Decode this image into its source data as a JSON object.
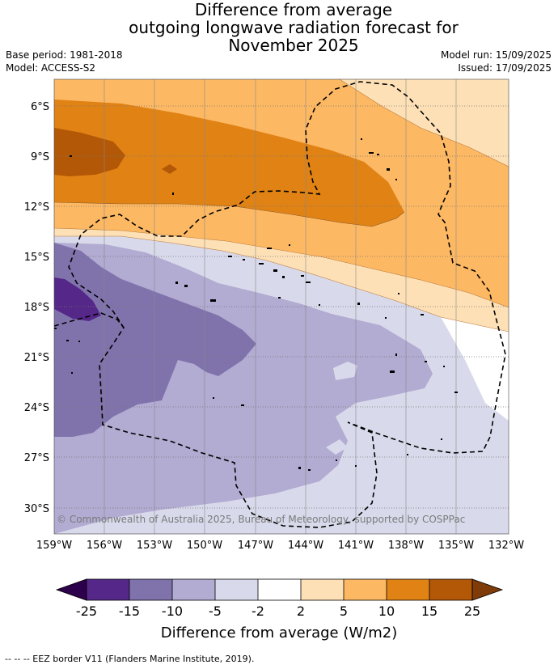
{
  "title": {
    "line1": "Difference from average",
    "line2": "outgoing longwave radiation forecast for",
    "line3": "November 2025"
  },
  "meta": {
    "base_period": "Base period: 1981-2018",
    "model": "Model: ACCESS-S2",
    "model_run": "Model run: 15/09/2025",
    "issued": "Issued: 17/09/2025"
  },
  "axes": {
    "lat_labels": [
      "6°S",
      "9°S",
      "12°S",
      "15°S",
      "18°S",
      "21°S",
      "24°S",
      "27°S",
      "30°S"
    ],
    "lon_labels": [
      "159°W",
      "156°W",
      "153°W",
      "150°W",
      "147°W",
      "144°W",
      "141°W",
      "138°W",
      "135°W",
      "132°W"
    ]
  },
  "copyright": "© Commonwealth of Australia 2025, Bureau of Meteorology, supported by COSPPac",
  "colorbar": {
    "ticks": [
      "-25",
      "-15",
      "-10",
      "-5",
      "-2",
      "2",
      "5",
      "10",
      "15",
      "25"
    ],
    "colors": [
      "#2d004b",
      "#542788",
      "#8073ac",
      "#b2abd2",
      "#d8daeb",
      "#ffffff",
      "#fee0b6",
      "#fdb863",
      "#e08214",
      "#b35806",
      "#7f3b08"
    ],
    "label": "Difference from average (W/m2)"
  },
  "footer": "--  --  -- EEZ border V11 (Flanders Marine Institute, 2019)."
}
